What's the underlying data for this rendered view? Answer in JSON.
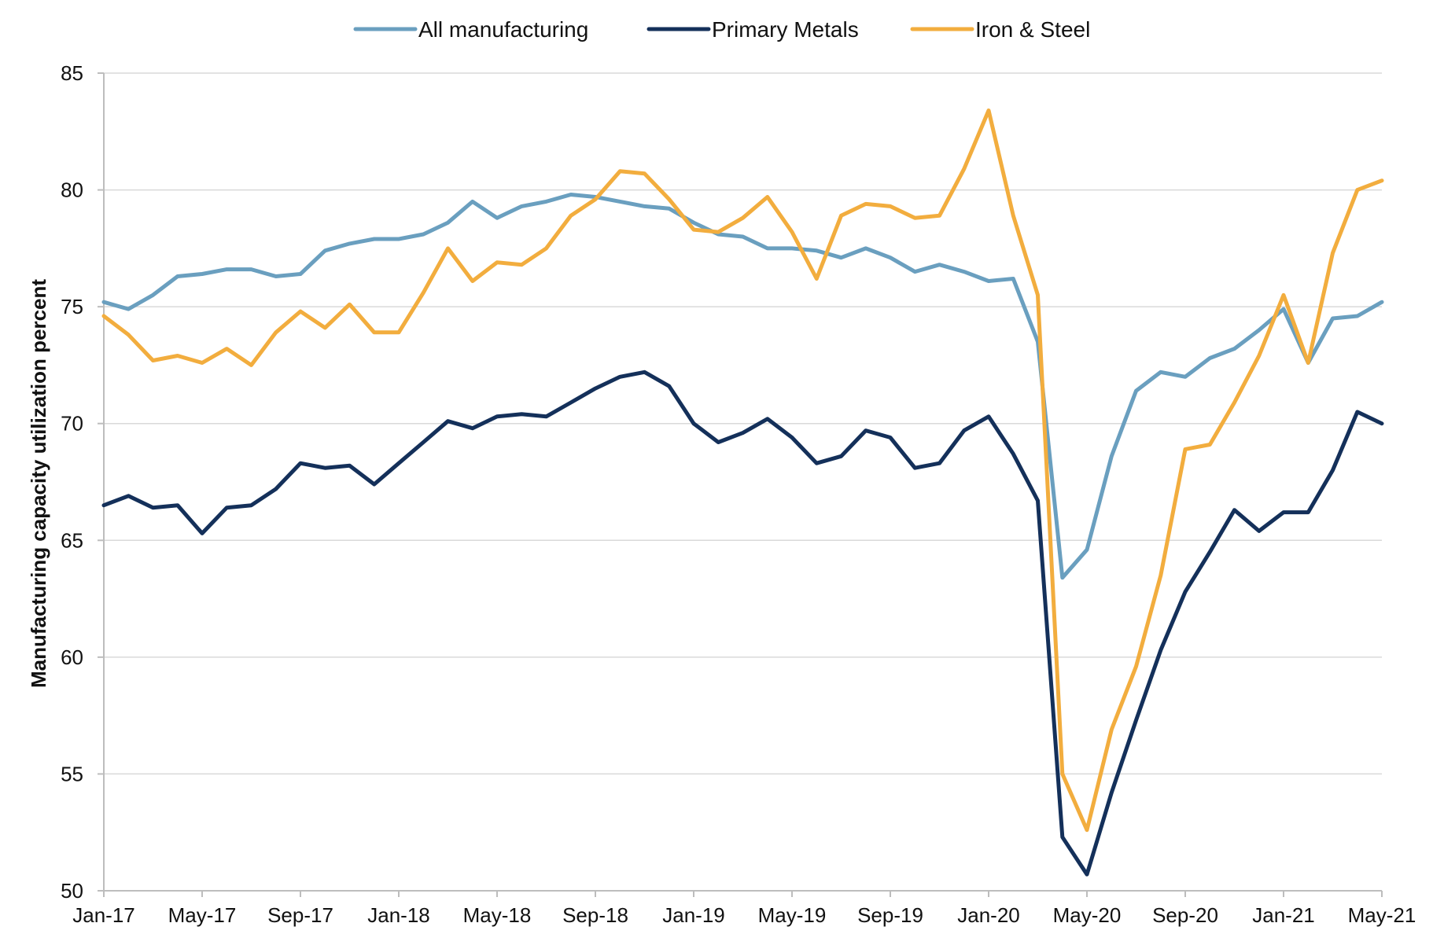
{
  "chart_data": {
    "type": "line",
    "title": "",
    "xlabel": "",
    "ylabel": "Manufacturing capacity utilization percent",
    "ylim": [
      50,
      85
    ],
    "y_ticks": [
      50,
      55,
      60,
      65,
      70,
      75,
      80,
      85
    ],
    "grid": "horizontal",
    "legend_position": "top",
    "x": [
      "Jan-17",
      "Feb-17",
      "Mar-17",
      "Apr-17",
      "May-17",
      "Jun-17",
      "Jul-17",
      "Aug-17",
      "Sep-17",
      "Oct-17",
      "Nov-17",
      "Dec-17",
      "Jan-18",
      "Feb-18",
      "Mar-18",
      "Apr-18",
      "May-18",
      "Jun-18",
      "Jul-18",
      "Aug-18",
      "Sep-18",
      "Oct-18",
      "Nov-18",
      "Dec-18",
      "Jan-19",
      "Feb-19",
      "Mar-19",
      "Apr-19",
      "May-19",
      "Jun-19",
      "Jul-19",
      "Aug-19",
      "Sep-19",
      "Oct-19",
      "Nov-19",
      "Dec-19",
      "Jan-20",
      "Feb-20",
      "Mar-20",
      "Apr-20",
      "May-20",
      "Jun-20",
      "Jul-20",
      "Aug-20",
      "Sep-20",
      "Oct-20",
      "Nov-20",
      "Dec-20",
      "Jan-21",
      "Feb-21",
      "Mar-21",
      "Apr-21",
      "May-21"
    ],
    "x_tick_labels": [
      "Jan-17",
      "May-17",
      "Sep-17",
      "Jan-18",
      "May-18",
      "Sep-18",
      "Jan-19",
      "May-19",
      "Sep-19",
      "Jan-20",
      "May-20",
      "Sep-20",
      "Jan-21",
      "May-21"
    ],
    "series": [
      {
        "name": "All manufacturing",
        "color": "#6a9fbf",
        "values": [
          75.2,
          74.9,
          75.5,
          76.3,
          76.4,
          76.6,
          76.6,
          76.3,
          76.4,
          77.4,
          77.7,
          77.9,
          77.9,
          78.1,
          78.6,
          79.5,
          78.8,
          79.3,
          79.5,
          79.8,
          79.7,
          79.5,
          79.3,
          79.2,
          78.6,
          78.1,
          78.0,
          77.5,
          77.5,
          77.4,
          77.1,
          77.5,
          77.1,
          76.5,
          76.8,
          76.5,
          76.1,
          76.2,
          73.5,
          63.4,
          64.6,
          68.6,
          71.4,
          72.2,
          72.0,
          72.8,
          73.2,
          74.0,
          74.9,
          72.6,
          74.5,
          74.6,
          75.2
        ]
      },
      {
        "name": "Primary Metals",
        "color": "#14305a",
        "values": [
          66.5,
          66.9,
          66.4,
          66.5,
          65.3,
          66.4,
          66.5,
          67.2,
          68.3,
          68.1,
          68.2,
          67.4,
          68.3,
          69.2,
          70.1,
          69.8,
          70.3,
          70.4,
          70.3,
          70.9,
          71.5,
          72.0,
          72.2,
          71.6,
          70.0,
          69.2,
          69.6,
          70.2,
          69.4,
          68.3,
          68.6,
          69.7,
          69.4,
          68.1,
          68.3,
          69.7,
          70.3,
          68.7,
          66.7,
          52.3,
          50.7,
          54.2,
          57.3,
          60.3,
          62.8,
          64.5,
          66.3,
          65.4,
          66.2,
          66.2,
          68.0,
          70.5,
          70.0
        ]
      },
      {
        "name": "Iron & Steel",
        "color": "#f2ad3e",
        "values": [
          74.6,
          73.8,
          72.7,
          72.9,
          72.6,
          73.2,
          72.5,
          73.9,
          74.8,
          74.1,
          75.1,
          73.9,
          73.9,
          75.6,
          77.5,
          76.1,
          76.9,
          76.8,
          77.5,
          78.9,
          79.6,
          80.8,
          80.7,
          79.6,
          78.3,
          78.2,
          78.8,
          79.7,
          78.2,
          76.2,
          78.9,
          79.4,
          79.3,
          78.8,
          78.9,
          80.9,
          83.4,
          78.9,
          75.5,
          55.0,
          52.6,
          56.9,
          59.6,
          63.5,
          68.9,
          69.1,
          70.9,
          72.9,
          75.5,
          72.6,
          77.3,
          80.0,
          80.4
        ]
      }
    ]
  }
}
